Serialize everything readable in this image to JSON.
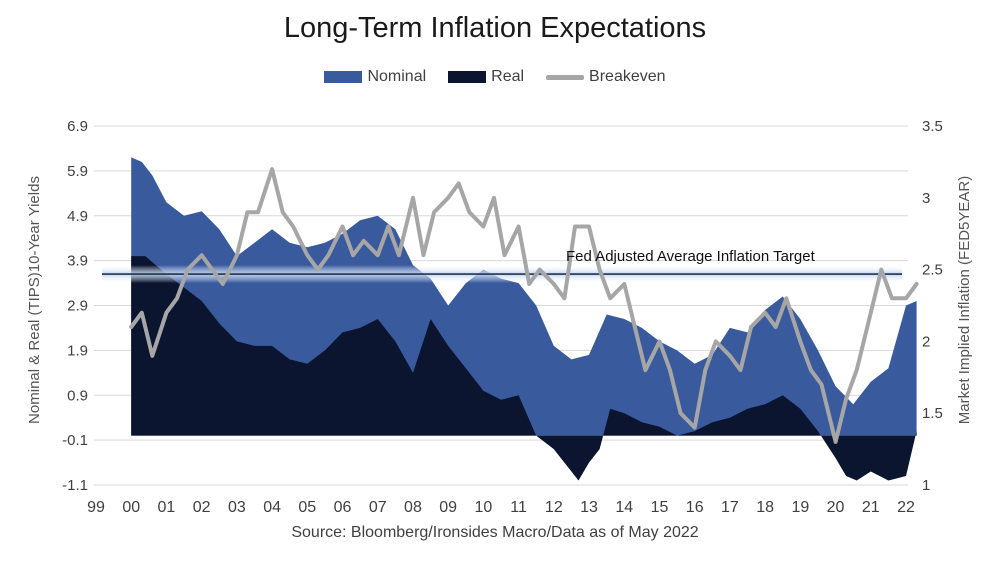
{
  "chart_data": {
    "type": "area",
    "title": "Long-Term Inflation Expectations",
    "ylabel": "Nominal  & Real (TIPS)10-Year Yields",
    "y2label": "Market Implied Inflation (FED5YEAR)",
    "source": "Source: Bloomberg/Ironsides Macro/Data as of May 2022",
    "ylim": [
      -1.1,
      6.9
    ],
    "y2lim": [
      1,
      3.5
    ],
    "xlim": [
      99,
      122
    ],
    "grid": true,
    "legend_position": "top-center",
    "yticks": [
      "6.9",
      "5.9",
      "4.9",
      "3.9",
      "2.9",
      "1.9",
      "0.9",
      "-0.1",
      "-1.1"
    ],
    "y2ticks": [
      "3.5",
      "3",
      "2.5",
      "2",
      "1.5",
      "1"
    ],
    "xticks": [
      "99",
      "00",
      "01",
      "02",
      "03",
      "04",
      "05",
      "06",
      "07",
      "08",
      "09",
      "10",
      "11",
      "12",
      "13",
      "14",
      "15",
      "16",
      "17",
      "18",
      "19",
      "20",
      "21",
      "22"
    ],
    "annotation": {
      "text": "Fed Adjusted Average Inflation Target",
      "y": 3.6
    },
    "colors": {
      "nominal": "#3a5a9e",
      "real": "#0b1530",
      "breakeven": "#a6a6a6",
      "target": "#0b1530",
      "target_glow": "#b9d3f0"
    },
    "series": [
      {
        "name": "Nominal",
        "axis": "left",
        "style": "area",
        "x": [
          100.0,
          100.3,
          100.6,
          101.0,
          101.5,
          102.0,
          102.5,
          103.0,
          103.5,
          104.0,
          104.5,
          105.0,
          105.5,
          106.0,
          106.5,
          107.0,
          107.5,
          108.0,
          108.5,
          109.0,
          109.5,
          110.0,
          110.5,
          111.0,
          111.5,
          112.0,
          112.5,
          113.0,
          113.5,
          114.0,
          114.5,
          115.0,
          115.5,
          116.0,
          116.5,
          117.0,
          117.5,
          118.0,
          118.5,
          119.0,
          119.5,
          120.0,
          120.5,
          121.0,
          121.5,
          122.0,
          122.3
        ],
        "values": [
          6.2,
          6.1,
          5.8,
          5.2,
          4.9,
          5.0,
          4.6,
          4.0,
          4.3,
          4.6,
          4.3,
          4.2,
          4.3,
          4.5,
          4.8,
          4.9,
          4.6,
          3.8,
          3.5,
          2.9,
          3.4,
          3.7,
          3.5,
          3.4,
          2.9,
          2.0,
          1.7,
          1.8,
          2.7,
          2.6,
          2.4,
          2.1,
          1.9,
          1.6,
          1.8,
          2.4,
          2.3,
          2.8,
          3.1,
          2.6,
          1.9,
          1.1,
          0.7,
          1.2,
          1.5,
          2.9,
          3.0
        ]
      },
      {
        "name": "Real",
        "axis": "left",
        "style": "area",
        "x": [
          100.0,
          100.4,
          101.0,
          101.5,
          102.0,
          102.5,
          103.0,
          103.5,
          104.0,
          104.5,
          105.0,
          105.5,
          106.0,
          106.5,
          107.0,
          107.5,
          108.0,
          108.5,
          109.0,
          109.5,
          110.0,
          110.5,
          111.0,
          111.5,
          112.0,
          112.3,
          112.7,
          113.0,
          113.3,
          113.6,
          114.0,
          114.5,
          115.0,
          115.5,
          116.0,
          116.5,
          117.0,
          117.5,
          118.0,
          118.5,
          119.0,
          119.5,
          120.0,
          120.3,
          120.6,
          121.0,
          121.5,
          122.0,
          122.3
        ],
        "values": [
          4.0,
          4.0,
          3.6,
          3.3,
          3.0,
          2.5,
          2.1,
          2.0,
          2.0,
          1.7,
          1.6,
          1.9,
          2.3,
          2.4,
          2.6,
          2.1,
          1.4,
          2.6,
          2.0,
          1.5,
          1.0,
          0.8,
          0.9,
          0.0,
          -0.3,
          -0.6,
          -1.0,
          -0.6,
          -0.3,
          0.6,
          0.5,
          0.3,
          0.2,
          0.0,
          0.1,
          0.3,
          0.4,
          0.6,
          0.7,
          0.9,
          0.6,
          0.1,
          -0.5,
          -0.9,
          -1.0,
          -0.8,
          -1.0,
          -0.9,
          0.1
        ]
      },
      {
        "name": "Breakeven",
        "axis": "right",
        "style": "line",
        "x": [
          100.0,
          100.3,
          100.6,
          101.0,
          101.3,
          101.6,
          102.0,
          102.3,
          102.6,
          103.0,
          103.3,
          103.6,
          104.0,
          104.3,
          104.6,
          105.0,
          105.3,
          105.6,
          106.0,
          106.3,
          106.6,
          107.0,
          107.3,
          107.6,
          108.0,
          108.3,
          108.6,
          109.0,
          109.3,
          109.6,
          110.0,
          110.3,
          110.6,
          111.0,
          111.3,
          111.6,
          112.0,
          112.3,
          112.6,
          113.0,
          113.3,
          113.6,
          114.0,
          114.3,
          114.6,
          115.0,
          115.3,
          115.6,
          116.0,
          116.3,
          116.6,
          117.0,
          117.3,
          117.6,
          118.0,
          118.3,
          118.6,
          119.0,
          119.3,
          119.6,
          120.0,
          120.3,
          120.6,
          121.0,
          121.3,
          121.6,
          122.0,
          122.3
        ],
        "values": [
          2.1,
          2.2,
          1.9,
          2.2,
          2.3,
          2.5,
          2.6,
          2.5,
          2.4,
          2.6,
          2.9,
          2.9,
          3.2,
          2.9,
          2.8,
          2.6,
          2.5,
          2.6,
          2.8,
          2.6,
          2.7,
          2.6,
          2.8,
          2.6,
          3.0,
          2.6,
          2.9,
          3.0,
          3.1,
          2.9,
          2.8,
          3.0,
          2.6,
          2.8,
          2.4,
          2.5,
          2.4,
          2.3,
          2.8,
          2.8,
          2.5,
          2.3,
          2.4,
          2.1,
          1.8,
          2.0,
          1.8,
          1.5,
          1.4,
          1.8,
          2.0,
          1.9,
          1.8,
          2.1,
          2.2,
          2.1,
          2.3,
          2.0,
          1.8,
          1.7,
          1.3,
          1.6,
          1.8,
          2.2,
          2.5,
          2.3,
          2.3,
          2.4
        ]
      }
    ]
  }
}
